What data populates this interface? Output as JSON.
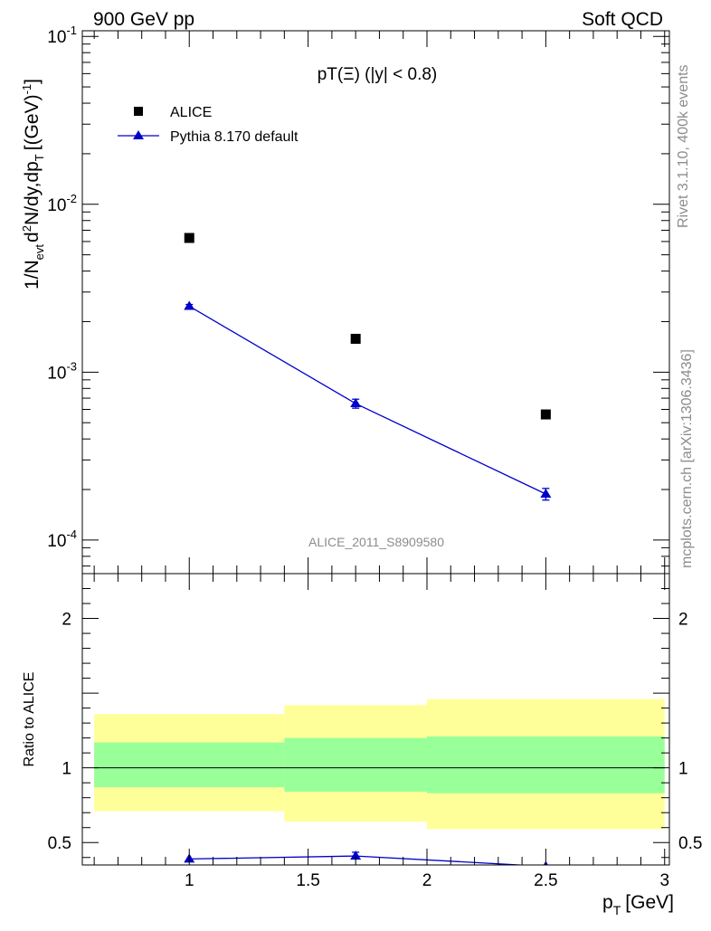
{
  "header": {
    "left": "900 GeV pp",
    "right": "Soft QCD"
  },
  "side_text": {
    "top": "Rivet 3.1.10,  400k events",
    "bottom": "mcplots.cern.ch [arXiv:1306.3436]"
  },
  "chart_data": [
    {
      "type": "scatter",
      "title": "pT(Ξ) (|y| < 0.8)",
      "analysis_label": "ALICE_2011_S8909580",
      "ylabel": "1/N_evt d²N/dy,dp_T [(GeV)⁻¹]",
      "ylabel_parts": {
        "prefix": "1/N",
        "evt": "evt",
        "d2": "d",
        "sq": "2",
        "mid": "N/dy,dp",
        "T": "T",
        "unit": "[(GeV)",
        "inv": "-1",
        "close": "]"
      },
      "yscale": "log",
      "ylim": [
        6.31e-05,
        0.108
      ],
      "xlim": [
        0.55,
        3.02
      ],
      "yticks": [
        {
          "value": 0.1,
          "base": "10",
          "exp": "-1"
        },
        {
          "value": 0.01,
          "base": "10",
          "exp": "-2"
        },
        {
          "value": 0.001,
          "base": "10",
          "exp": "-3"
        },
        {
          "value": 0.0001,
          "base": "10",
          "exp": "-4"
        }
      ],
      "series": [
        {
          "name": "ALICE",
          "marker": "square",
          "color": "#000000",
          "x": [
            1.0,
            1.7,
            2.5
          ],
          "y": [
            0.0063,
            0.00158,
            0.00056
          ]
        },
        {
          "name": "Pythia 8.170 default",
          "marker": "triangle",
          "color": "#0000cc",
          "x": [
            1.0,
            1.7,
            2.5
          ],
          "y": [
            0.00247,
            0.00065,
            0.000188
          ],
          "yerr": [
            6e-05,
            4e-05,
            1.5e-05
          ]
        }
      ],
      "legend": "top-left"
    },
    {
      "type": "area",
      "ylabel": "Ratio to ALICE",
      "xlabel": "p_T [GeV]",
      "xlabel_parts": {
        "p": "p",
        "T": "T",
        "unit": "[GeV]"
      },
      "ylim": [
        0.35,
        2.3
      ],
      "xlim": [
        0.55,
        3.02
      ],
      "xticks": [
        "1",
        "1.5",
        "2",
        "2.5",
        "3"
      ],
      "xtick_values": [
        1,
        1.5,
        2,
        2.5,
        3
      ],
      "yticks": [
        "0.5",
        "1",
        "2"
      ],
      "ytick_values": [
        0.5,
        1,
        2
      ],
      "bands": [
        {
          "xlo": 0.6,
          "xhi": 1.4,
          "stat_lo": 0.87,
          "stat_hi": 1.17,
          "tot_lo": 0.71,
          "tot_hi": 1.36
        },
        {
          "xlo": 1.4,
          "xhi": 2.0,
          "stat_lo": 0.84,
          "stat_hi": 1.2,
          "tot_lo": 0.64,
          "tot_hi": 1.42
        },
        {
          "xlo": 2.0,
          "xhi": 3.0,
          "stat_lo": 0.83,
          "stat_hi": 1.21,
          "tot_lo": 0.59,
          "tot_hi": 1.46
        }
      ],
      "band_colors": {
        "stat": "#99ff99",
        "total": "#ffff99"
      },
      "ratio_series": {
        "name": "Pythia 8.170 default",
        "color": "#0000cc",
        "x": [
          1.0,
          1.7,
          2.5
        ],
        "y": [
          0.39,
          0.41,
          0.34
        ],
        "yerr": [
          0.0,
          0.025,
          0.0
        ]
      }
    }
  ]
}
